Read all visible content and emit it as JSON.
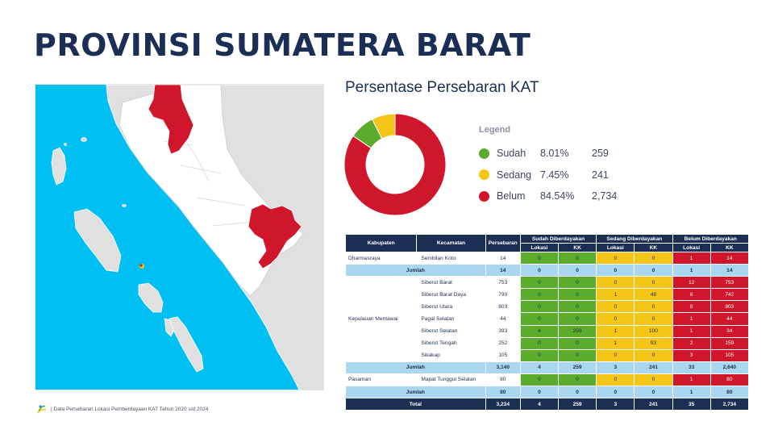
{
  "title": "PROVINSI SUMATERA BARAT",
  "section_title": "Persentase Persebaran KAT",
  "colors": {
    "sudah": "#5bab2d",
    "sedang": "#f5c518",
    "belum": "#d0162b",
    "navy": "#1b2f55",
    "jumlah": "#a9d7f2",
    "sea": "#00bff3"
  },
  "legend": {
    "heading": "Legend",
    "items": [
      {
        "name": "Sudah",
        "pct": "8.01%",
        "count": "259"
      },
      {
        "name": "Sedang",
        "pct": "7.45%",
        "count": "241"
      },
      {
        "name": "Belum",
        "pct": "84.54%",
        "count": "2,734"
      }
    ]
  },
  "chart_data": {
    "type": "pie",
    "categories": [
      "Sudah",
      "Sedang",
      "Belum"
    ],
    "values": [
      8.01,
      7.45,
      84.54
    ],
    "counts": [
      259,
      241,
      2734
    ]
  },
  "table": {
    "headers": {
      "kabupaten": "Kabupaten",
      "kecamatan": "Kecamatan",
      "persebaran": "Persebaran",
      "sudah": "Sudah Diberdayakan",
      "sedang": "Sedang Diberdayakan",
      "belum": "Belum Diberdayakan",
      "lokasi": "Lokasi",
      "kk": "KK"
    },
    "dharmasraya": {
      "kabupaten": "Dharmasraya",
      "rows": [
        {
          "kecamatan": "Sembilan Koto",
          "persebaran": "14",
          "s_lok": "0",
          "s_kk": "0",
          "m_lok": "0",
          "m_kk": "0",
          "b_lok": "1",
          "b_kk": "14"
        }
      ],
      "jumlah": {
        "label": "Jumlah",
        "persebaran": "14",
        "s_lok": "0",
        "s_kk": "0",
        "m_lok": "0",
        "m_kk": "0",
        "b_lok": "1",
        "b_kk": "14"
      }
    },
    "mentawai": {
      "kabupaten": "Kepulauan Mentawai",
      "rows": [
        {
          "kecamatan": "Siberut Barat",
          "persebaran": "753",
          "s_lok": "0",
          "s_kk": "0",
          "m_lok": "0",
          "m_kk": "0",
          "b_lok": "12",
          "b_kk": "753"
        },
        {
          "kecamatan": "Siberut Barat Daya",
          "persebaran": "790",
          "s_lok": "0",
          "s_kk": "0",
          "m_lok": "1",
          "m_kk": "48",
          "b_lok": "6",
          "b_kk": "742"
        },
        {
          "kecamatan": "Siberut Utara",
          "persebaran": "803",
          "s_lok": "0",
          "s_kk": "0",
          "m_lok": "0",
          "m_kk": "0",
          "b_lok": "8",
          "b_kk": "803"
        },
        {
          "kecamatan": "Pagai Selatan",
          "persebaran": "44",
          "s_lok": "0",
          "s_kk": "0",
          "m_lok": "0",
          "m_kk": "0",
          "b_lok": "1",
          "b_kk": "44"
        },
        {
          "kecamatan": "Siberut Selatan",
          "persebaran": "393",
          "s_lok": "4",
          "s_kk": "259",
          "m_lok": "1",
          "m_kk": "100",
          "b_lok": "1",
          "b_kk": "34"
        },
        {
          "kecamatan": "Siberut Tengah",
          "persebaran": "252",
          "s_lok": "0",
          "s_kk": "0",
          "m_lok": "1",
          "m_kk": "93",
          "b_lok": "2",
          "b_kk": "159"
        },
        {
          "kecamatan": "Sikakap",
          "persebaran": "105",
          "s_lok": "0",
          "s_kk": "0",
          "m_lok": "0",
          "m_kk": "0",
          "b_lok": "3",
          "b_kk": "105"
        }
      ],
      "jumlah": {
        "label": "Jumlah",
        "persebaran": "3,140",
        "s_lok": "4",
        "s_kk": "259",
        "m_lok": "3",
        "m_kk": "241",
        "b_lok": "33",
        "b_kk": "2,640"
      }
    },
    "pasaman": {
      "kabupaten": "Pasaman",
      "rows": [
        {
          "kecamatan": "Mapat Tunggul Selatan",
          "persebaran": "80",
          "s_lok": "0",
          "s_kk": "0",
          "m_lok": "0",
          "m_kk": "0",
          "b_lok": "1",
          "b_kk": "80"
        }
      ],
      "jumlah": {
        "label": "Jumlah",
        "persebaran": "80",
        "s_lok": "0",
        "s_kk": "0",
        "m_lok": "0",
        "m_kk": "0",
        "b_lok": "1",
        "b_kk": "80"
      }
    },
    "total": {
      "label": "Total",
      "persebaran": "3,234",
      "s_lok": "4",
      "s_kk": "259",
      "m_lok": "3",
      "m_kk": "241",
      "b_lok": "35",
      "b_kk": "2,734"
    }
  },
  "footnote": "| Data Persebaran Lokasi Pemberdayaan KAT Tahun 2020 s/d 2024"
}
